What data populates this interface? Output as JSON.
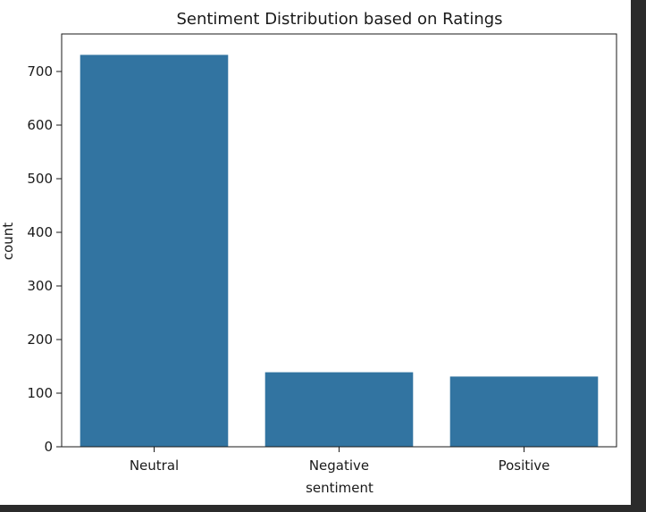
{
  "chart_data": {
    "type": "bar",
    "title": "Sentiment Distribution based on Ratings",
    "xlabel": "sentiment",
    "ylabel": "count",
    "categories": [
      "Neutral",
      "Negative",
      "Positive"
    ],
    "values": [
      731,
      139,
      131
    ],
    "ylim": [
      0,
      770
    ],
    "yticks": [
      0,
      100,
      200,
      300,
      400,
      500,
      600,
      700
    ],
    "grid": false,
    "bar_color": "#3274a1"
  }
}
